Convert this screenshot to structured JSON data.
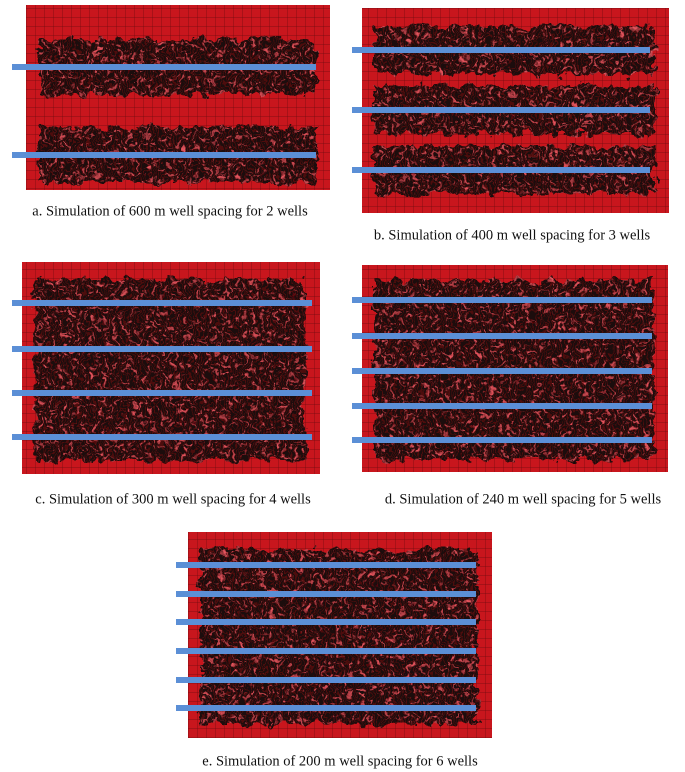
{
  "panels": [
    {
      "caption": "a. Simulation of 600 m well spacing for 2 wells"
    },
    {
      "caption": "b. Simulation of 400 m well spacing for 3 wells"
    },
    {
      "caption": "c. Simulation of 300 m well spacing for 4 wells"
    },
    {
      "caption": "d. Simulation of 240 m well spacing for 5 wells"
    },
    {
      "caption": "e. Simulation of 200 m well spacing for 6 wells"
    }
  ]
}
